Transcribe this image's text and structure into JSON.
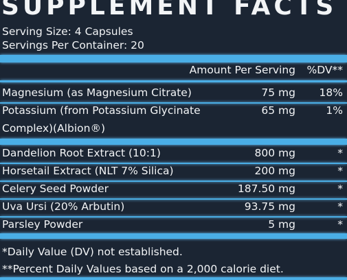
{
  "header": {
    "title": "SUPPLEMENT FACTS"
  },
  "serving": {
    "size": "Serving Size: 4 Capsules",
    "per_container": "Servings Per Container: 20"
  },
  "table": {
    "columns": [
      "Amount Per Serving",
      "%DV**"
    ],
    "rows": [
      {
        "name": [
          "Magnesium (as Magnesium Citrate)"
        ],
        "amount": "75 mg",
        "dv": "18%"
      },
      {
        "name": [
          "Potassium (from Potassium Glycinate",
          "Complex)(Albion®)"
        ],
        "amount": "65 mg",
        "dv": "1%"
      },
      {
        "name": [
          "Dandelion Root Extract (10:1)"
        ],
        "amount": "800 mg",
        "dv": "*"
      },
      {
        "name": [
          "Horsetail Extract (NLT 7% Silica)"
        ],
        "amount": "200 mg",
        "dv": "*"
      },
      {
        "name": [
          "Celery Seed Powder"
        ],
        "amount": "187.50 mg",
        "dv": "*"
      },
      {
        "name": [
          "Uva Ursi (20% Arbutin)"
        ],
        "amount": "93.75 mg",
        "dv": "*"
      },
      {
        "name": [
          "Parsley Powder"
        ],
        "amount": "5 mg",
        "dv": "*"
      }
    ]
  },
  "footnotes": [
    "*Daily Value (DV) not established.",
    "**Percent Daily Values based on a 2,000 calorie diet."
  ]
}
